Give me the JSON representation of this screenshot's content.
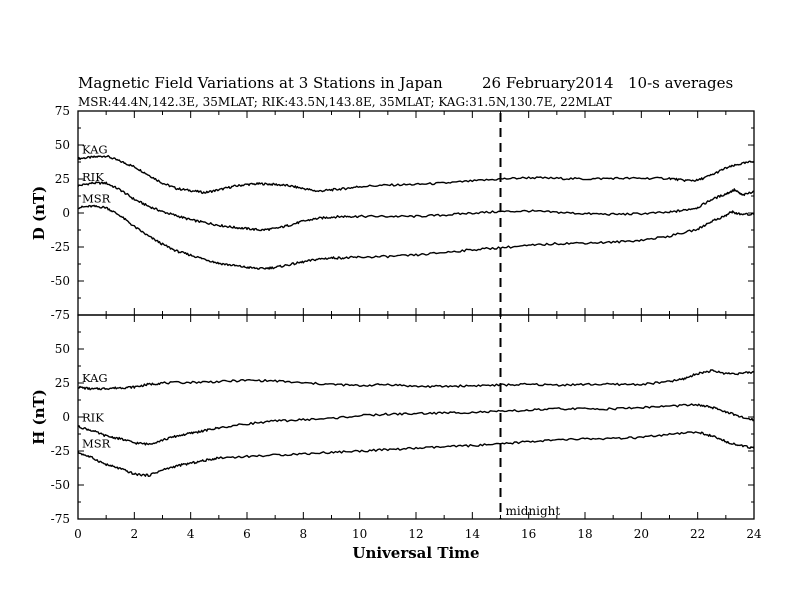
{
  "header": {
    "title": "Magnetic Field Variations at 3 Stations in Japan",
    "date": "26 February2014",
    "averaging": "10-s averages",
    "stations": "MSR:44.4N,142.3E, 35MLAT;  RIK:43.5N,143.8E, 35MLAT;  KAG:31.5N,130.7E, 22MLAT"
  },
  "chart_data": [
    {
      "type": "line",
      "panel": "D",
      "ylabel": "D (nT)",
      "xlabel": "",
      "xlim": [
        0,
        24
      ],
      "ylim": [
        -75,
        75
      ],
      "yticks": [
        75,
        50,
        25,
        0,
        -25,
        -50,
        -75
      ],
      "xticks": [],
      "series": [
        {
          "name": "KAG",
          "points": [
            [
              0,
              40
            ],
            [
              0.5,
              41
            ],
            [
              1,
              42
            ],
            [
              1.5,
              38
            ],
            [
              2,
              34
            ],
            [
              2.5,
              28
            ],
            [
              3,
              22
            ],
            [
              3.5,
              18
            ],
            [
              4,
              16.5
            ],
            [
              4.5,
              15
            ],
            [
              5,
              17
            ],
            [
              5.5,
              19.5
            ],
            [
              6,
              21
            ],
            [
              6.5,
              21.5
            ],
            [
              7,
              21
            ],
            [
              7.5,
              20
            ],
            [
              8,
              18
            ],
            [
              8.5,
              16
            ],
            [
              9,
              17
            ],
            [
              9.5,
              18
            ],
            [
              10,
              19.5
            ],
            [
              11,
              20.5
            ],
            [
              12,
              21
            ],
            [
              13,
              22
            ],
            [
              14,
              23.5
            ],
            [
              15,
              25
            ],
            [
              16,
              26
            ],
            [
              17,
              25.5
            ],
            [
              18,
              25
            ],
            [
              19,
              25.5
            ],
            [
              20,
              25.5
            ],
            [
              21,
              25.5
            ],
            [
              21.5,
              24
            ],
            [
              22,
              24
            ],
            [
              22.5,
              28
            ],
            [
              23,
              33
            ],
            [
              23.5,
              36
            ],
            [
              24,
              38
            ]
          ]
        },
        {
          "name": "RIK",
          "points": [
            [
              0,
              20
            ],
            [
              0.5,
              22
            ],
            [
              1,
              22
            ],
            [
              1.5,
              17
            ],
            [
              2,
              10
            ],
            [
              2.5,
              5
            ],
            [
              3,
              1
            ],
            [
              3.5,
              -2
            ],
            [
              4,
              -5
            ],
            [
              4.5,
              -7
            ],
            [
              5,
              -9
            ],
            [
              5.5,
              -10.5
            ],
            [
              6,
              -11.5
            ],
            [
              6.5,
              -12.5
            ],
            [
              7,
              -11.5
            ],
            [
              7.5,
              -9
            ],
            [
              8,
              -6
            ],
            [
              8.5,
              -4
            ],
            [
              9,
              -3
            ],
            [
              9.5,
              -2.5
            ],
            [
              10,
              -2.5
            ],
            [
              11,
              -2.5
            ],
            [
              12,
              -2.5
            ],
            [
              13,
              -1.5
            ],
            [
              14,
              0
            ],
            [
              15,
              1
            ],
            [
              16,
              1.5
            ],
            [
              17,
              0.5
            ],
            [
              18,
              -0.5
            ],
            [
              19,
              -1
            ],
            [
              20,
              -0.5
            ],
            [
              21,
              0.5
            ],
            [
              21.5,
              2
            ],
            [
              22,
              4
            ],
            [
              22.5,
              10
            ],
            [
              23,
              14
            ],
            [
              23.3,
              17
            ],
            [
              23.6,
              13
            ],
            [
              24,
              16
            ]
          ]
        },
        {
          "name": "MSR",
          "points": [
            [
              0,
              4
            ],
            [
              0.5,
              5
            ],
            [
              1,
              4
            ],
            [
              1.5,
              -2
            ],
            [
              2,
              -10
            ],
            [
              2.5,
              -17
            ],
            [
              3,
              -23
            ],
            [
              3.5,
              -28
            ],
            [
              4,
              -31
            ],
            [
              4.5,
              -34
            ],
            [
              5,
              -37
            ],
            [
              5.5,
              -38.5
            ],
            [
              6,
              -40
            ],
            [
              6.5,
              -41
            ],
            [
              7,
              -40
            ],
            [
              7.5,
              -38
            ],
            [
              8,
              -36
            ],
            [
              8.5,
              -34
            ],
            [
              9,
              -33
            ],
            [
              9.5,
              -33
            ],
            [
              10,
              -32.5
            ],
            [
              11,
              -32
            ],
            [
              12,
              -31
            ],
            [
              13,
              -29
            ],
            [
              14,
              -27
            ],
            [
              15,
              -25.5
            ],
            [
              16,
              -24
            ],
            [
              17,
              -22.5
            ],
            [
              18,
              -22
            ],
            [
              19,
              -21.5
            ],
            [
              20,
              -20
            ],
            [
              21,
              -17
            ],
            [
              22,
              -12
            ],
            [
              22.5,
              -6
            ],
            [
              23,
              -2
            ],
            [
              23.2,
              1
            ],
            [
              23.5,
              -1
            ],
            [
              24,
              -1
            ]
          ]
        }
      ]
    },
    {
      "type": "line",
      "panel": "H",
      "ylabel": "H (nT)",
      "xlabel": "Universal Time",
      "xlim": [
        0,
        24
      ],
      "ylim": [
        -75,
        75
      ],
      "yticks": [
        50,
        25,
        0,
        -25,
        -50,
        -75
      ],
      "xticks": [
        0,
        2,
        4,
        6,
        8,
        10,
        12,
        14,
        16,
        18,
        20,
        22,
        24
      ],
      "series": [
        {
          "name": "KAG",
          "points": [
            [
              0,
              22
            ],
            [
              0.5,
              20.5
            ],
            [
              1,
              21
            ],
            [
              1.5,
              21.5
            ],
            [
              2,
              22
            ],
            [
              2.5,
              24
            ],
            [
              3,
              25
            ],
            [
              4,
              25.5
            ],
            [
              5,
              26
            ],
            [
              6,
              27
            ],
            [
              7,
              26.5
            ],
            [
              8,
              25
            ],
            [
              9,
              24
            ],
            [
              10,
              23
            ],
            [
              11,
              24
            ],
            [
              12,
              22.5
            ],
            [
              13,
              22.5
            ],
            [
              14,
              23
            ],
            [
              15,
              23.5
            ],
            [
              16,
              24
            ],
            [
              17,
              23.5
            ],
            [
              18,
              24
            ],
            [
              19,
              24
            ],
            [
              20,
              24
            ],
            [
              21,
              26
            ],
            [
              21.5,
              28
            ],
            [
              22,
              32
            ],
            [
              22.5,
              34
            ],
            [
              23,
              32
            ],
            [
              23.5,
              32
            ],
            [
              24,
              33
            ]
          ]
        },
        {
          "name": "RIK",
          "points": [
            [
              0,
              -7
            ],
            [
              0.5,
              -10
            ],
            [
              1,
              -14
            ],
            [
              1.5,
              -16
            ],
            [
              2,
              -19
            ],
            [
              2.5,
              -20
            ],
            [
              3,
              -17
            ],
            [
              3.5,
              -14
            ],
            [
              4,
              -12
            ],
            [
              4.5,
              -10
            ],
            [
              5,
              -8
            ],
            [
              6,
              -5
            ],
            [
              7,
              -3
            ],
            [
              8,
              -2
            ],
            [
              9,
              -1
            ],
            [
              10,
              1
            ],
            [
              11,
              2
            ],
            [
              12,
              2.5
            ],
            [
              13,
              3
            ],
            [
              14,
              3.5
            ],
            [
              15,
              4
            ],
            [
              16,
              5
            ],
            [
              17,
              6
            ],
            [
              18,
              6
            ],
            [
              19,
              6
            ],
            [
              20,
              7
            ],
            [
              21,
              8
            ],
            [
              22,
              9
            ],
            [
              22.5,
              7
            ],
            [
              23,
              4
            ],
            [
              23.5,
              0
            ],
            [
              24,
              -2
            ]
          ]
        },
        {
          "name": "MSR",
          "points": [
            [
              0,
              -26
            ],
            [
              0.5,
              -30
            ],
            [
              1,
              -35
            ],
            [
              1.5,
              -38
            ],
            [
              2,
              -42
            ],
            [
              2.5,
              -43
            ],
            [
              3,
              -39
            ],
            [
              3.5,
              -36
            ],
            [
              4,
              -34
            ],
            [
              4.5,
              -32
            ],
            [
              5,
              -30
            ],
            [
              6,
              -29
            ],
            [
              7,
              -28
            ],
            [
              8,
              -27
            ],
            [
              9,
              -26
            ],
            [
              10,
              -25
            ],
            [
              11,
              -24
            ],
            [
              12,
              -23
            ],
            [
              13,
              -22
            ],
            [
              14,
              -21
            ],
            [
              15,
              -20
            ],
            [
              16,
              -18
            ],
            [
              17,
              -17
            ],
            [
              18,
              -16
            ],
            [
              19,
              -16
            ],
            [
              20,
              -15
            ],
            [
              21,
              -13
            ],
            [
              22,
              -11
            ],
            [
              22.5,
              -14
            ],
            [
              23,
              -18
            ],
            [
              23.5,
              -21
            ],
            [
              24,
              -23
            ]
          ]
        }
      ]
    }
  ],
  "annotation": {
    "midnight_ut": 15,
    "midnight_label": "midnight"
  }
}
